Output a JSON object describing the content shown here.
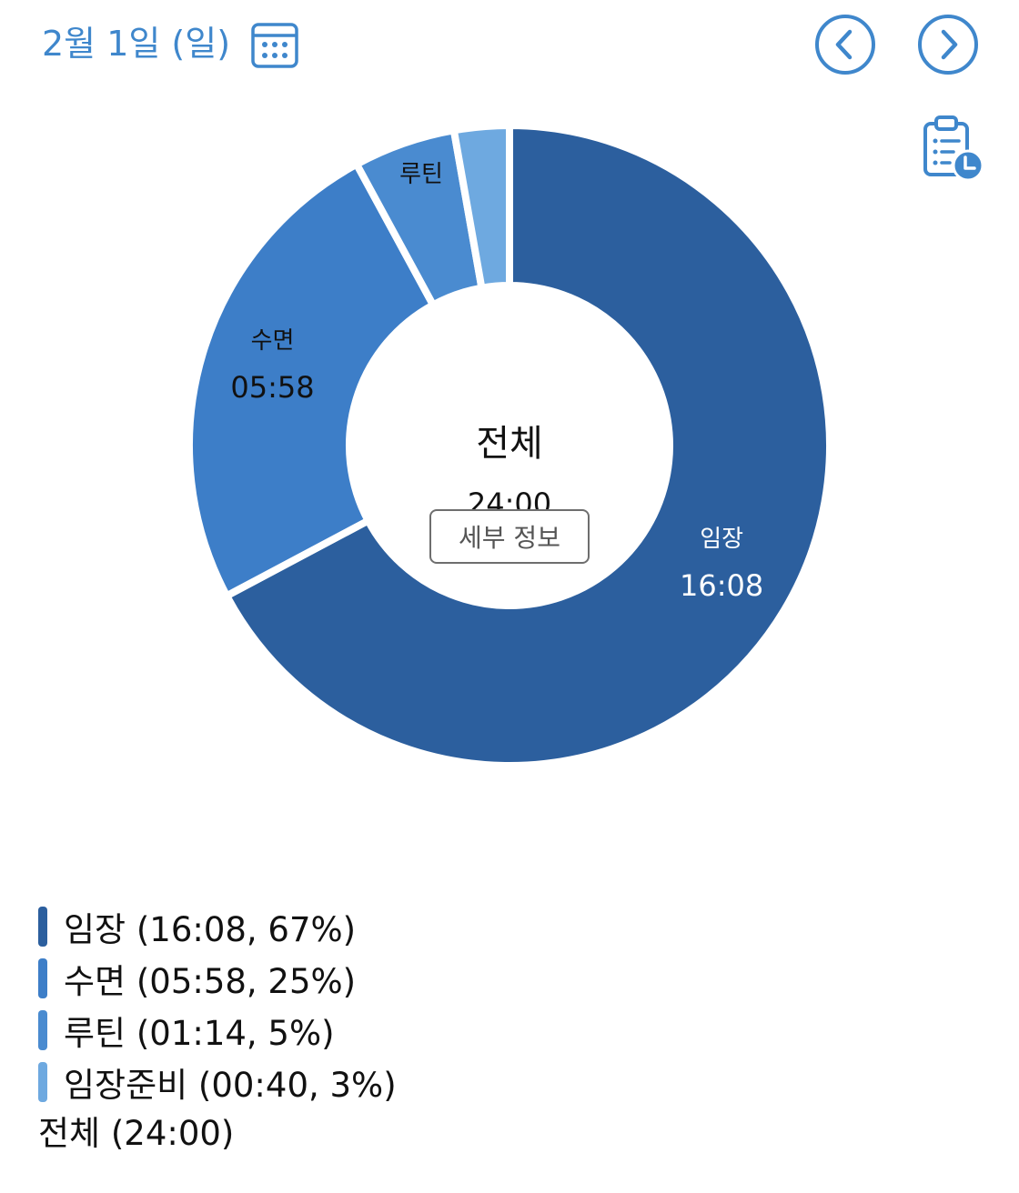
{
  "header": {
    "date_label": "2월 1일 (일)",
    "calendar_icon": "calendar-icon",
    "prev_icon": "chevron-left-circle-icon",
    "next_icon": "chevron-right-circle-icon",
    "report_icon": "clipboard-clock-icon",
    "accent_color": "#3f87cc"
  },
  "chart_data": {
    "type": "pie",
    "categories": [
      "임장",
      "수면",
      "루틴",
      "임장준비"
    ],
    "values": [
      968,
      358,
      74,
      40
    ],
    "times": [
      "16:08",
      "05:58",
      "01:14",
      "00:40"
    ],
    "percents": [
      "67%",
      "25%",
      "5%",
      "3%"
    ],
    "colors": [
      "#2c5f9e",
      "#3d7ec8",
      "#4a8bd0",
      "#6ea9e0"
    ],
    "label_colors": [
      "#ffffff",
      "#111111",
      "#111111",
      "#111111"
    ],
    "slice_labels": [
      {
        "name": "임장",
        "time": "16:08"
      },
      {
        "name": "수면",
        "time": "05:58"
      },
      {
        "name": "루틴",
        "time": ""
      },
      {
        "name": "",
        "time": ""
      }
    ]
  },
  "center": {
    "title": "전체",
    "time": "24:00",
    "detail_button": "세부 정보"
  },
  "legend": {
    "items": [
      {
        "label": "임장 (16:08, 67%)",
        "color": "#2c5f9e"
      },
      {
        "label": "수면 (05:58, 25%)",
        "color": "#3d7ec8"
      },
      {
        "label": "루틴 (01:14, 5%)",
        "color": "#4a8bd0"
      },
      {
        "label": "임장준비 (00:40, 3%)",
        "color": "#6ea9e0"
      }
    ],
    "total": "전체 (24:00)"
  }
}
